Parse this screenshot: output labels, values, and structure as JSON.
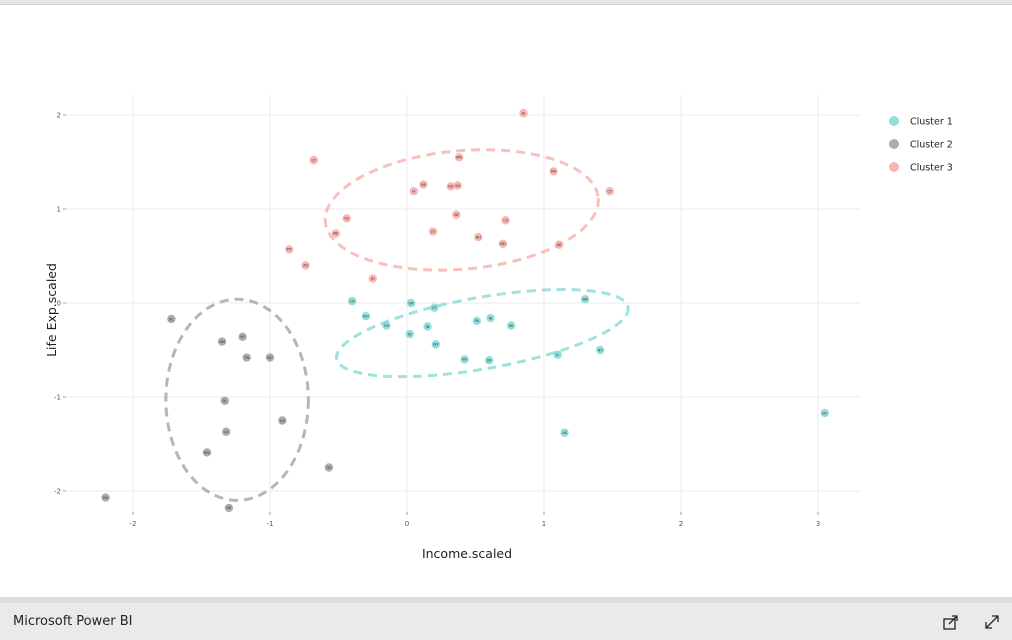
{
  "app": {
    "brand": "Microsoft Power BI",
    "share_icon": "share-icon",
    "expand_icon": "expand-icon"
  },
  "colors": {
    "cluster1": "#7fd8d4",
    "cluster2": "#9e9e9e",
    "cluster3": "#f7a9a4",
    "grid": "#ebebeb"
  },
  "chart_data": {
    "type": "scatter",
    "xlabel": "Income.scaled",
    "ylabel": "Life Exp.scaled",
    "xlim": [
      -2.3,
      3.3
    ],
    "ylim": [
      -2.4,
      2.2
    ],
    "x_ticks": [
      -2,
      -1,
      0,
      1,
      2,
      3
    ],
    "y_ticks": [
      -2,
      -1,
      0,
      1,
      2
    ],
    "grid": true,
    "legend_position": "right",
    "series": [
      {
        "name": "Cluster 1",
        "color": "#7fd8d4",
        "points": [
          {
            "x": -0.4,
            "y": 0.02,
            "label": "CO"
          },
          {
            "x": -0.3,
            "y": -0.14,
            "label": "MO"
          },
          {
            "x": -0.15,
            "y": -0.24,
            "label": "OH"
          },
          {
            "x": 0.03,
            "y": 0.0,
            "label": "OR"
          },
          {
            "x": 0.2,
            "y": -0.05,
            "label": "UT"
          },
          {
            "x": 0.02,
            "y": -0.33,
            "label": "ID"
          },
          {
            "x": 0.15,
            "y": -0.25,
            "label": "IN"
          },
          {
            "x": 0.21,
            "y": -0.44,
            "label": "WY"
          },
          {
            "x": 0.42,
            "y": -0.6,
            "label": "NV"
          },
          {
            "x": 0.51,
            "y": -0.19,
            "label": "PA"
          },
          {
            "x": 0.61,
            "y": -0.16,
            "label": "NJ"
          },
          {
            "x": 0.6,
            "y": -0.61,
            "label": "DE"
          },
          {
            "x": 0.76,
            "y": -0.24,
            "label": "MI"
          },
          {
            "x": 1.1,
            "y": -0.55,
            "label": "IL"
          },
          {
            "x": 1.3,
            "y": 0.04,
            "label": "WA"
          },
          {
            "x": 1.41,
            "y": -0.5,
            "label": "NY"
          },
          {
            "x": 1.15,
            "y": -1.38,
            "label": "AK"
          },
          {
            "x": 3.05,
            "y": -1.17,
            "label": "DC"
          }
        ]
      },
      {
        "name": "Cluster 2",
        "color": "#9e9e9e",
        "points": [
          {
            "x": -1.72,
            "y": -0.17,
            "label": "SC"
          },
          {
            "x": -1.35,
            "y": -0.41,
            "label": "NM"
          },
          {
            "x": -1.2,
            "y": -0.36,
            "label": "KY"
          },
          {
            "x": -1.17,
            "y": -0.58,
            "label": "TN"
          },
          {
            "x": -1.0,
            "y": -0.58,
            "label": "NC"
          },
          {
            "x": -1.33,
            "y": -1.04,
            "label": "AL"
          },
          {
            "x": -1.32,
            "y": -1.37,
            "label": "LA"
          },
          {
            "x": -0.91,
            "y": -1.25,
            "label": "GA"
          },
          {
            "x": -1.46,
            "y": -1.59,
            "label": "WV"
          },
          {
            "x": -1.3,
            "y": -2.18,
            "label": "AR"
          },
          {
            "x": -0.57,
            "y": -1.75,
            "label": "OK"
          },
          {
            "x": -2.2,
            "y": -2.07,
            "label": "MS"
          }
        ]
      },
      {
        "name": "Cluster 3",
        "color": "#f7a9a4",
        "points": [
          {
            "x": -0.68,
            "y": 1.52,
            "label": "UT"
          },
          {
            "x": 0.38,
            "y": 1.55,
            "label": "MN"
          },
          {
            "x": 0.85,
            "y": 2.02,
            "label": "HI"
          },
          {
            "x": 1.07,
            "y": 1.4,
            "label": "MA"
          },
          {
            "x": 1.48,
            "y": 1.19,
            "label": "CT"
          },
          {
            "x": 0.12,
            "y": 1.26,
            "label": "NE"
          },
          {
            "x": 0.05,
            "y": 1.19,
            "label": "IA"
          },
          {
            "x": 0.32,
            "y": 1.24,
            "label": "ND"
          },
          {
            "x": 0.37,
            "y": 1.25,
            "label": "SD"
          },
          {
            "x": -0.44,
            "y": 0.9,
            "label": "KS"
          },
          {
            "x": -0.52,
            "y": 0.74,
            "label": "ME"
          },
          {
            "x": 0.36,
            "y": 0.94,
            "label": "WI"
          },
          {
            "x": 0.72,
            "y": 0.88,
            "label": "CA"
          },
          {
            "x": 0.19,
            "y": 0.76,
            "label": "VT"
          },
          {
            "x": 0.52,
            "y": 0.7,
            "label": "NH"
          },
          {
            "x": 0.7,
            "y": 0.63,
            "label": "MD"
          },
          {
            "x": 1.11,
            "y": 0.62,
            "label": "VA"
          },
          {
            "x": -0.86,
            "y": 0.57,
            "label": "MT"
          },
          {
            "x": -0.74,
            "y": 0.4,
            "label": "AZ"
          },
          {
            "x": -0.25,
            "y": 0.26,
            "label": "RI"
          }
        ]
      }
    ],
    "ellipses": [
      {
        "series": "Cluster 1",
        "cx": 0.55,
        "cy": -0.32,
        "rx": 1.08,
        "ry": 0.38,
        "angle_deg": -10
      },
      {
        "series": "Cluster 2",
        "cx": -1.24,
        "cy": -1.03,
        "rx": 0.52,
        "ry": 1.07,
        "angle_deg": 0
      },
      {
        "series": "Cluster 3",
        "cx": 0.4,
        "cy": 0.99,
        "rx": 1.0,
        "ry": 0.63,
        "angle_deg": -5
      }
    ]
  }
}
